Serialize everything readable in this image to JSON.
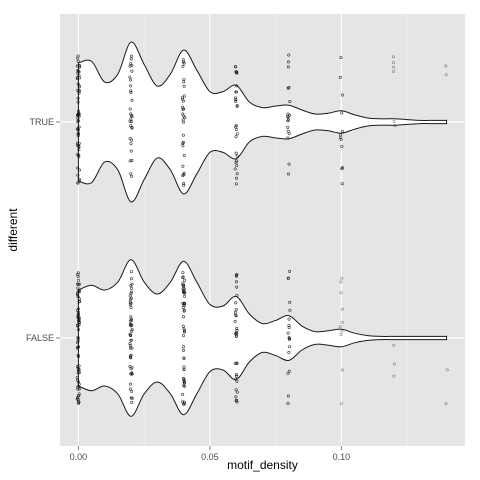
{
  "chart_data": {
    "type": "violin",
    "title": "",
    "xlabel": "motif_density",
    "ylabel": "different",
    "xlim": [
      -0.007,
      0.147
    ],
    "x_ticks": [
      {
        "value": 0.0,
        "label": "0.00"
      },
      {
        "value": 0.05,
        "label": "0.05"
      },
      {
        "value": 0.1,
        "label": "0.10"
      }
    ],
    "x_minor_ticks": [
      0.025,
      0.075,
      0.125
    ],
    "categories": [
      "TRUE",
      "FALSE"
    ],
    "grid": true,
    "legend": "none",
    "colors": {
      "panel": "#e5e5e5",
      "grid_major": "#ffffff",
      "grid_minor": "#f2f2f2",
      "violin_fill": "#ffffff",
      "violin_stroke": "#1a1a1a",
      "point": "#111111",
      "tick_label": "#4d4d4d",
      "axis_title": "#000000"
    },
    "series": [
      {
        "category": "TRUE",
        "density": {
          "x": [
            0.0,
            0.005,
            0.01,
            0.015,
            0.02,
            0.025,
            0.03,
            0.035,
            0.04,
            0.045,
            0.05,
            0.055,
            0.06,
            0.065,
            0.07,
            0.075,
            0.08,
            0.085,
            0.09,
            0.095,
            0.1,
            0.105,
            0.11,
            0.115,
            0.12,
            0.125,
            0.13,
            0.135,
            0.14
          ],
          "half_width": [
            0.74,
            0.76,
            0.5,
            0.6,
            1.0,
            0.72,
            0.45,
            0.6,
            0.9,
            0.65,
            0.38,
            0.38,
            0.46,
            0.25,
            0.18,
            0.2,
            0.21,
            0.15,
            0.1,
            0.11,
            0.14,
            0.09,
            0.05,
            0.04,
            0.04,
            0.03,
            0.02,
            0.02,
            0.02
          ]
        },
        "points": [
          {
            "x": 0.0,
            "count": 60
          },
          {
            "x": 0.02,
            "count": 30
          },
          {
            "x": 0.04,
            "count": 30
          },
          {
            "x": 0.06,
            "count": 28
          },
          {
            "x": 0.08,
            "count": 18
          },
          {
            "x": 0.1,
            "count": 12
          },
          {
            "x": 0.12,
            "count": 6
          },
          {
            "x": 0.14,
            "count": 2
          }
        ]
      },
      {
        "category": "FALSE",
        "density": {
          "x": [
            0.0,
            0.005,
            0.01,
            0.015,
            0.02,
            0.025,
            0.03,
            0.035,
            0.04,
            0.045,
            0.05,
            0.055,
            0.06,
            0.065,
            0.07,
            0.075,
            0.08,
            0.085,
            0.09,
            0.095,
            0.1,
            0.105,
            0.11,
            0.115,
            0.12,
            0.125,
            0.13,
            0.135,
            0.14
          ],
          "half_width": [
            0.6,
            0.66,
            0.6,
            0.7,
            0.98,
            0.7,
            0.55,
            0.7,
            0.96,
            0.7,
            0.42,
            0.4,
            0.52,
            0.3,
            0.18,
            0.22,
            0.28,
            0.15,
            0.08,
            0.09,
            0.11,
            0.06,
            0.03,
            0.02,
            0.02,
            0.02,
            0.02,
            0.02,
            0.02
          ]
        },
        "points": [
          {
            "x": 0.0,
            "count": 70
          },
          {
            "x": 0.02,
            "count": 50
          },
          {
            "x": 0.04,
            "count": 50
          },
          {
            "x": 0.06,
            "count": 32
          },
          {
            "x": 0.08,
            "count": 18
          },
          {
            "x": 0.1,
            "count": 10
          },
          {
            "x": 0.12,
            "count": 3
          },
          {
            "x": 0.14,
            "count": 2
          }
        ]
      }
    ]
  }
}
